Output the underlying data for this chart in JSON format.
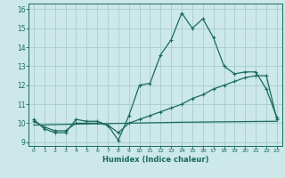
{
  "xlabel": "Humidex (Indice chaleur)",
  "background_color": "#cce8e8",
  "grid_color": "#aacccc",
  "line_color": "#1a6b5a",
  "xlim": [
    -0.5,
    23.5
  ],
  "ylim": [
    8.8,
    16.3
  ],
  "xticks": [
    0,
    1,
    2,
    3,
    4,
    5,
    6,
    7,
    8,
    9,
    10,
    11,
    12,
    13,
    14,
    15,
    16,
    17,
    18,
    19,
    20,
    21,
    22,
    23
  ],
  "yticks": [
    9,
    10,
    11,
    12,
    13,
    14,
    15,
    16
  ],
  "line1_x": [
    0,
    1,
    2,
    3,
    4,
    5,
    6,
    7,
    8,
    9,
    10,
    11,
    12,
    13,
    14,
    15,
    16,
    17,
    18,
    19,
    20,
    21,
    22,
    23
  ],
  "line1_y": [
    10.2,
    9.7,
    9.5,
    9.5,
    10.2,
    10.1,
    10.1,
    9.9,
    9.1,
    10.4,
    12.0,
    12.1,
    13.6,
    14.4,
    15.8,
    15.0,
    15.5,
    14.5,
    13.0,
    12.6,
    12.7,
    12.7,
    11.8,
    10.3
  ],
  "line2_x": [
    0,
    1,
    2,
    3,
    4,
    5,
    6,
    7,
    8,
    9,
    10,
    11,
    12,
    13,
    14,
    15,
    16,
    17,
    18,
    19,
    20,
    21,
    22,
    23
  ],
  "line2_y": [
    10.1,
    9.8,
    9.6,
    9.6,
    10.0,
    10.0,
    10.0,
    9.9,
    9.5,
    10.0,
    10.2,
    10.4,
    10.6,
    10.8,
    11.0,
    11.3,
    11.5,
    11.8,
    12.0,
    12.2,
    12.4,
    12.5,
    12.5,
    10.2
  ],
  "line3_x": [
    0,
    4,
    9,
    14,
    19,
    23
  ],
  "line3_y": [
    9.9,
    9.95,
    10.0,
    10.05,
    10.08,
    10.1
  ]
}
